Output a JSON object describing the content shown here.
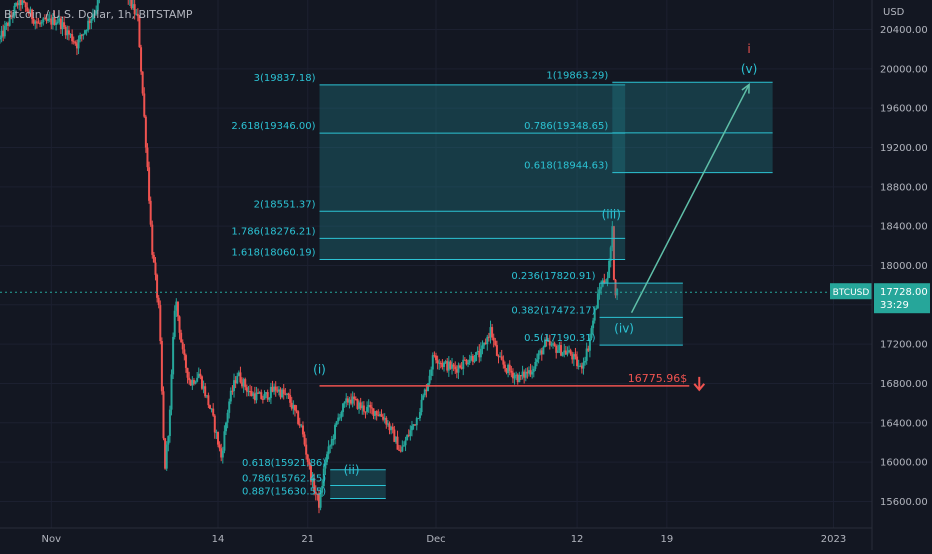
{
  "symbol_title": "Bitcoin / U.S. Dollar, 1h, BITSTAMP",
  "currency": "USD",
  "colors": {
    "background": "#131722",
    "up": "#26a69a",
    "down": "#ef5350",
    "fib": "#2cc3d4",
    "fib_fill": "#1f7f89",
    "support": "#ef5350",
    "axis_text": "#b2b5be",
    "grid": "#1c2030",
    "wave_label": "#2cc3d4",
    "wave_label_red": "#ef5350",
    "arrow": "#5fbfa8"
  },
  "price_tag": {
    "symbol": "BTCUSD",
    "price": "17728.00",
    "countdown": "33:29"
  },
  "support_level": {
    "label": "16775.96$",
    "value": 16775.96,
    "arrow": "down-arrow-icon"
  },
  "wave_labels": [
    {
      "text": "(i)",
      "price": 16900,
      "date": "2022-11-21T22:00"
    },
    {
      "text": "(ii)",
      "price": 15880,
      "date": "2022-11-24T10:00"
    },
    {
      "text": "(iii)",
      "price": 18480,
      "date": "2022-12-14T16:00"
    },
    {
      "text": "(iv)",
      "price": 17320,
      "date": "2022-12-15T16:00"
    },
    {
      "text": "(v)",
      "price": 19960,
      "date": "2022-12-25T10:00"
    },
    {
      "text": "i",
      "price": 20160,
      "date": "2022-12-25T10:00",
      "red": true
    }
  ],
  "fib_boxes": [
    {
      "name": "fib-box-wave-ii",
      "date_from": "2022-11-22T18:00",
      "date_to": "2022-11-27T02:00",
      "levels": [
        {
          "text": "0.618(15921.86)",
          "price": 15921.86
        },
        {
          "text": "0.786(15762.45)",
          "price": 15762.45
        },
        {
          "text": "0.887(15630.55)",
          "price": 15630.55
        }
      ]
    },
    {
      "name": "fib-box-wave-iii",
      "date_from": "2022-11-21T22:00",
      "date_to": "2022-12-15T18:00",
      "levels": [
        {
          "text": "3(19837.18)",
          "price": 19837.18
        },
        {
          "text": "2.618(19346.00)",
          "price": 19346.0
        },
        {
          "text": "2(18551.37)",
          "price": 18551.37
        },
        {
          "text": "1.786(18276.21)",
          "price": 18276.21
        },
        {
          "text": "1.618(18060.19)",
          "price": 18060.19
        }
      ]
    },
    {
      "name": "fib-box-wave-iv",
      "date_from": "2022-12-13T18:00",
      "date_to": "2022-12-20T06:00",
      "levels": [
        {
          "text": "0.236(17820.91)",
          "price": 17820.91
        },
        {
          "text": "0.382(17472.17)",
          "price": 17472.17
        },
        {
          "text": "0.5(17190.31)",
          "price": 17190.31
        }
      ]
    },
    {
      "name": "fib-box-wave-v",
      "date_from": "2022-12-14T18:00",
      "date_to": "2022-12-27T06:00",
      "levels": [
        {
          "text": "1(19863.29)",
          "price": 19863.29
        },
        {
          "text": "0.786(19348.65)",
          "price": 19348.65
        },
        {
          "text": "0.618(18944.63)",
          "price": 18944.63
        }
      ]
    }
  ],
  "projection": {
    "from": {
      "date": "2022-12-16T06:00",
      "price": 17520
    },
    "to": {
      "date": "2022-12-25T10:00",
      "price": 19840
    }
  },
  "chart_data": {
    "type": "candlestick",
    "title": "Bitcoin / U.S. Dollar, 1h, BITSTAMP",
    "x_axis": {
      "type": "date",
      "range": [
        "2022-10-28T00:00",
        "2023-01-04T00:00"
      ],
      "tick_labels": [
        {
          "text": "Nov",
          "date": "2022-11-01"
        },
        {
          "text": "14",
          "date": "2022-11-14"
        },
        {
          "text": "21",
          "date": "2022-11-21"
        },
        {
          "text": "Dec",
          "date": "2022-12-01"
        },
        {
          "text": "12",
          "date": "2022-12-12"
        },
        {
          "text": "19",
          "date": "2022-12-19"
        },
        {
          "text": "2023",
          "date": "2023-01-01"
        }
      ]
    },
    "y_axis": {
      "label": "USD",
      "range": [
        15330,
        20700
      ],
      "ticks": [
        15600,
        16000,
        16400,
        16800,
        17200,
        17600,
        18000,
        18400,
        18800,
        19200,
        19600,
        20000,
        20400
      ],
      "tick_labels": [
        "15600.00",
        "16000.00",
        "16400.00",
        "16800.00",
        "17200.00",
        "17600.00",
        "18000.00",
        "18400.00",
        "18800.00",
        "19200.00",
        "19600.00",
        "20000.00",
        "20400.00"
      ]
    },
    "grid": true,
    "price_path": [
      {
        "date": "2022-10-28T00:00",
        "price": 20300
      },
      {
        "date": "2022-10-29T12:00",
        "price": 20700
      },
      {
        "date": "2022-10-31T00:00",
        "price": 20450
      },
      {
        "date": "2022-11-01T12:00",
        "price": 20500
      },
      {
        "date": "2022-11-03T00:00",
        "price": 20250
      },
      {
        "date": "2022-11-04T12:00",
        "price": 20620
      },
      {
        "date": "2022-11-05T12:00",
        "price": 21100
      },
      {
        "date": "2022-11-06T18:00",
        "price": 20800
      },
      {
        "date": "2022-11-07T18:00",
        "price": 20500
      },
      {
        "date": "2022-11-08T12:00",
        "price": 19000
      },
      {
        "date": "2022-11-08T20:00",
        "price": 18200
      },
      {
        "date": "2022-11-09T10:00",
        "price": 17500
      },
      {
        "date": "2022-11-09T20:00",
        "price": 15900
      },
      {
        "date": "2022-11-10T06:00",
        "price": 16500
      },
      {
        "date": "2022-11-10T16:00",
        "price": 17700
      },
      {
        "date": "2022-11-11T06:00",
        "price": 17100
      },
      {
        "date": "2022-11-11T20:00",
        "price": 16800
      },
      {
        "date": "2022-11-12T12:00",
        "price": 16900
      },
      {
        "date": "2022-11-13T12:00",
        "price": 16500
      },
      {
        "date": "2022-11-14T06:00",
        "price": 16050
      },
      {
        "date": "2022-11-14T20:00",
        "price": 16600
      },
      {
        "date": "2022-11-15T12:00",
        "price": 16900
      },
      {
        "date": "2022-11-16T12:00",
        "price": 16700
      },
      {
        "date": "2022-11-17T12:00",
        "price": 16650
      },
      {
        "date": "2022-11-18T12:00",
        "price": 16750
      },
      {
        "date": "2022-11-19T12:00",
        "price": 16650
      },
      {
        "date": "2022-11-20T12:00",
        "price": 16350
      },
      {
        "date": "2022-11-21T08:00",
        "price": 15800
      },
      {
        "date": "2022-11-21T22:00",
        "price": 15560
      },
      {
        "date": "2022-11-22T08:00",
        "price": 16000
      },
      {
        "date": "2022-11-22T20:00",
        "price": 16200
      },
      {
        "date": "2022-11-23T12:00",
        "price": 16500
      },
      {
        "date": "2022-11-24T06:00",
        "price": 16650
      },
      {
        "date": "2022-11-25T06:00",
        "price": 16550
      },
      {
        "date": "2022-11-26T06:00",
        "price": 16520
      },
      {
        "date": "2022-11-27T00:00",
        "price": 16450
      },
      {
        "date": "2022-11-27T18:00",
        "price": 16250
      },
      {
        "date": "2022-11-28T06:00",
        "price": 16100
      },
      {
        "date": "2022-11-28T18:00",
        "price": 16250
      },
      {
        "date": "2022-11-29T12:00",
        "price": 16450
      },
      {
        "date": "2022-11-30T08:00",
        "price": 16800
      },
      {
        "date": "2022-11-30T20:00",
        "price": 17100
      },
      {
        "date": "2022-12-01T12:00",
        "price": 17000
      },
      {
        "date": "2022-12-02T12:00",
        "price": 16950
      },
      {
        "date": "2022-12-03T12:00",
        "price": 17050
      },
      {
        "date": "2022-12-04T12:00",
        "price": 17100
      },
      {
        "date": "2022-12-05T06:00",
        "price": 17350
      },
      {
        "date": "2022-12-05T20:00",
        "price": 17050
      },
      {
        "date": "2022-12-06T12:00",
        "price": 16950
      },
      {
        "date": "2022-12-07T12:00",
        "price": 16850
      },
      {
        "date": "2022-12-08T12:00",
        "price": 16950
      },
      {
        "date": "2022-12-09T12:00",
        "price": 17200
      },
      {
        "date": "2022-12-10T12:00",
        "price": 17150
      },
      {
        "date": "2022-12-11T12:00",
        "price": 17100
      },
      {
        "date": "2022-12-12T06:00",
        "price": 16950
      },
      {
        "date": "2022-12-12T20:00",
        "price": 17150
      },
      {
        "date": "2022-12-13T08:00",
        "price": 17500
      },
      {
        "date": "2022-12-13T20:00",
        "price": 17800
      },
      {
        "date": "2022-12-14T10:00",
        "price": 17900
      },
      {
        "date": "2022-12-14T18:00",
        "price": 18350
      },
      {
        "date": "2022-12-14T22:00",
        "price": 17750
      },
      {
        "date": "2022-12-15T04:00",
        "price": 17728
      }
    ]
  }
}
